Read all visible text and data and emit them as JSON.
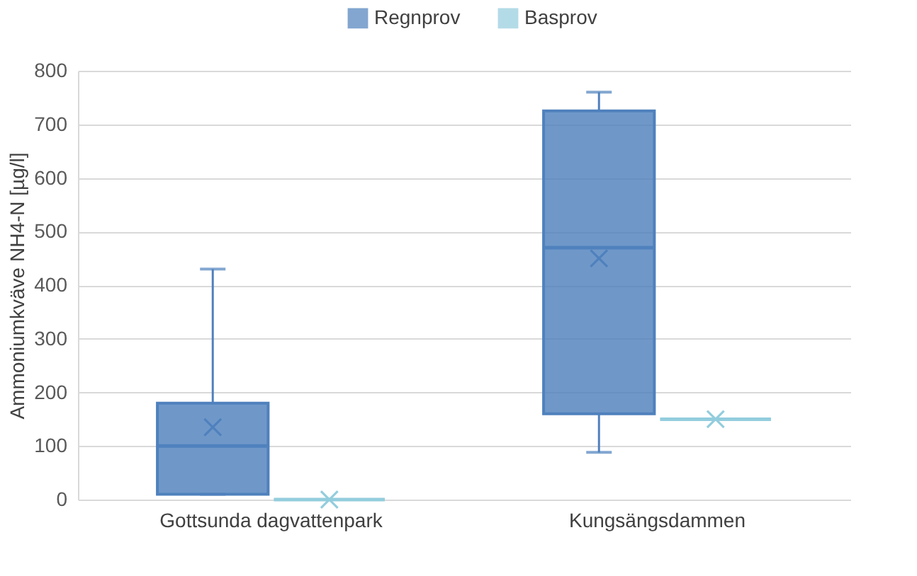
{
  "chart_data": {
    "type": "box",
    "categories": [
      "Gottsunda dagvattenpark",
      "Kungsängsdammen"
    ],
    "ylabel": "Ammoniumkväve NH4-N [µg/l]",
    "ylim": [
      0,
      800
    ],
    "yticks": [
      0,
      100,
      200,
      300,
      400,
      500,
      600,
      700,
      800
    ],
    "grid": "y",
    "legend": "top",
    "series": [
      {
        "name": "Regnprov",
        "color": "#4f81bd",
        "boxes": [
          {
            "low": 10,
            "q1": 10,
            "median": 100,
            "q3": 180,
            "high": 430,
            "mean": 135
          },
          {
            "low": 88,
            "q1": 160,
            "median": 470,
            "q3": 725,
            "high": 760,
            "mean": 450
          }
        ]
      },
      {
        "name": "Basprov",
        "color": "#93cddd",
        "boxes": [
          {
            "low": 0,
            "q1": 0,
            "median": 0,
            "q3": 0,
            "high": 0,
            "mean": 0
          },
          {
            "low": 150,
            "q1": 150,
            "median": 150,
            "q3": 150,
            "high": 150,
            "mean": 150
          }
        ]
      }
    ]
  }
}
